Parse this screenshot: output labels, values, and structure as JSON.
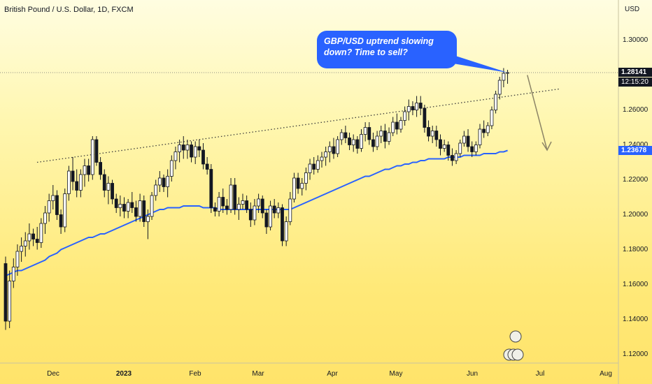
{
  "symbol_title": "British Pound / U.S. Dollar, 1D, FXCM",
  "currency_label": "USD",
  "price_badge": "1.28141",
  "price_badge_time": "12:15:20",
  "ma_badge": "1.23678",
  "callout_text": "GBP/USD uptrend slowing down? Time to sell?",
  "chart_data": {
    "type": "line",
    "title": "British Pound / U.S. Dollar, 1D, FXCM",
    "ylabel": "USD",
    "ylim": [
      1.115,
      1.323
    ],
    "y_ticks": [
      "1.30000",
      "1.28000",
      "1.26000",
      "1.24000",
      "1.22000",
      "1.20000",
      "1.18000",
      "1.16000",
      "1.14000",
      "1.12000"
    ],
    "x_ticks": [
      {
        "label": "Dec"
      },
      {
        "label": "2023",
        "bold": true
      },
      {
        "label": "Feb"
      },
      {
        "label": "Mar"
      },
      {
        "label": "Apr"
      },
      {
        "label": "May"
      },
      {
        "label": "Jun"
      },
      {
        "label": "Jul"
      },
      {
        "label": "Aug"
      }
    ],
    "series": [
      {
        "kind": "candlestick",
        "up_color": "#ffffff",
        "down_color": "#131722",
        "ohlc": [
          [
            1.172,
            1.176,
            1.134,
            1.139
          ],
          [
            1.139,
            1.168,
            1.135,
            1.162
          ],
          [
            1.162,
            1.175,
            1.158,
            1.17
          ],
          [
            1.17,
            1.183,
            1.165,
            1.179
          ],
          [
            1.179,
            1.187,
            1.173,
            1.182
          ],
          [
            1.182,
            1.19,
            1.176,
            1.185
          ],
          [
            1.185,
            1.195,
            1.18,
            1.189
          ],
          [
            1.189,
            1.192,
            1.182,
            1.186
          ],
          [
            1.186,
            1.193,
            1.18,
            1.184
          ],
          [
            1.184,
            1.198,
            1.181,
            1.195
          ],
          [
            1.195,
            1.205,
            1.189,
            1.201
          ],
          [
            1.201,
            1.212,
            1.196,
            1.208
          ],
          [
            1.208,
            1.217,
            1.203,
            1.211
          ],
          [
            1.211,
            1.214,
            1.197,
            1.2
          ],
          [
            1.2,
            1.203,
            1.189,
            1.193
          ],
          [
            1.193,
            1.215,
            1.19,
            1.212
          ],
          [
            1.212,
            1.228,
            1.208,
            1.225
          ],
          [
            1.225,
            1.233,
            1.214,
            1.219
          ],
          [
            1.219,
            1.226,
            1.21,
            1.214
          ],
          [
            1.214,
            1.226,
            1.21,
            1.223
          ],
          [
            1.223,
            1.232,
            1.216,
            1.228
          ],
          [
            1.228,
            1.232,
            1.219,
            1.223
          ],
          [
            1.223,
            1.245,
            1.22,
            1.243
          ],
          [
            1.243,
            1.245,
            1.228,
            1.23
          ],
          [
            1.23,
            1.233,
            1.22,
            1.223
          ],
          [
            1.223,
            1.226,
            1.21,
            1.214
          ],
          [
            1.214,
            1.222,
            1.206,
            1.218
          ],
          [
            1.218,
            1.22,
            1.206,
            1.209
          ],
          [
            1.209,
            1.212,
            1.201,
            1.204
          ],
          [
            1.204,
            1.211,
            1.199,
            1.206
          ],
          [
            1.206,
            1.21,
            1.198,
            1.202
          ],
          [
            1.202,
            1.209,
            1.198,
            1.207
          ],
          [
            1.207,
            1.213,
            1.201,
            1.204
          ],
          [
            1.204,
            1.208,
            1.196,
            1.199
          ],
          [
            1.199,
            1.212,
            1.196,
            1.208
          ],
          [
            1.208,
            1.211,
            1.193,
            1.196
          ],
          [
            1.196,
            1.203,
            1.186,
            1.199
          ],
          [
            1.199,
            1.213,
            1.197,
            1.211
          ],
          [
            1.211,
            1.22,
            1.208,
            1.217
          ],
          [
            1.217,
            1.225,
            1.213,
            1.221
          ],
          [
            1.221,
            1.223,
            1.213,
            1.216
          ],
          [
            1.216,
            1.226,
            1.21,
            1.222
          ],
          [
            1.222,
            1.234,
            1.219,
            1.231
          ],
          [
            1.231,
            1.239,
            1.226,
            1.236
          ],
          [
            1.236,
            1.243,
            1.23,
            1.24
          ],
          [
            1.24,
            1.245,
            1.232,
            1.237
          ],
          [
            1.237,
            1.243,
            1.232,
            1.24
          ],
          [
            1.24,
            1.242,
            1.23,
            1.233
          ],
          [
            1.233,
            1.242,
            1.229,
            1.239
          ],
          [
            1.239,
            1.243,
            1.233,
            1.237
          ],
          [
            1.237,
            1.241,
            1.226,
            1.229
          ],
          [
            1.229,
            1.233,
            1.223,
            1.226
          ],
          [
            1.226,
            1.229,
            1.201,
            1.204
          ],
          [
            1.204,
            1.207,
            1.199,
            1.202
          ],
          [
            1.202,
            1.213,
            1.199,
            1.21
          ],
          [
            1.21,
            1.215,
            1.201,
            1.205
          ],
          [
            1.205,
            1.209,
            1.2,
            1.203
          ],
          [
            1.203,
            1.221,
            1.201,
            1.217
          ],
          [
            1.217,
            1.221,
            1.2,
            1.203
          ],
          [
            1.203,
            1.21,
            1.197,
            1.206
          ],
          [
            1.206,
            1.212,
            1.203,
            1.208
          ],
          [
            1.208,
            1.211,
            1.201,
            1.203
          ],
          [
            1.203,
            1.207,
            1.193,
            1.197
          ],
          [
            1.197,
            1.209,
            1.194,
            1.205
          ],
          [
            1.205,
            1.212,
            1.201,
            1.209
          ],
          [
            1.209,
            1.211,
            1.198,
            1.201
          ],
          [
            1.201,
            1.203,
            1.189,
            1.193
          ],
          [
            1.193,
            1.208,
            1.191,
            1.205
          ],
          [
            1.205,
            1.209,
            1.198,
            1.201
          ],
          [
            1.201,
            1.207,
            1.198,
            1.204
          ],
          [
            1.204,
            1.206,
            1.182,
            1.185
          ],
          [
            1.185,
            1.199,
            1.182,
            1.196
          ],
          [
            1.196,
            1.213,
            1.194,
            1.209
          ],
          [
            1.209,
            1.224,
            1.207,
            1.221
          ],
          [
            1.221,
            1.224,
            1.212,
            1.215
          ],
          [
            1.215,
            1.221,
            1.211,
            1.218
          ],
          [
            1.218,
            1.227,
            1.214,
            1.224
          ],
          [
            1.224,
            1.232,
            1.22,
            1.229
          ],
          [
            1.229,
            1.233,
            1.223,
            1.226
          ],
          [
            1.226,
            1.234,
            1.224,
            1.231
          ],
          [
            1.231,
            1.236,
            1.227,
            1.233
          ],
          [
            1.233,
            1.239,
            1.228,
            1.236
          ],
          [
            1.236,
            1.242,
            1.23,
            1.239
          ],
          [
            1.239,
            1.244,
            1.232,
            1.235
          ],
          [
            1.235,
            1.245,
            1.233,
            1.243
          ],
          [
            1.243,
            1.249,
            1.24,
            1.247
          ],
          [
            1.247,
            1.251,
            1.241,
            1.244
          ],
          [
            1.244,
            1.247,
            1.237,
            1.24
          ],
          [
            1.24,
            1.246,
            1.236,
            1.243
          ],
          [
            1.243,
            1.245,
            1.235,
            1.238
          ],
          [
            1.238,
            1.249,
            1.236,
            1.246
          ],
          [
            1.246,
            1.253,
            1.242,
            1.25
          ],
          [
            1.25,
            1.253,
            1.24,
            1.243
          ],
          [
            1.243,
            1.247,
            1.236,
            1.239
          ],
          [
            1.239,
            1.248,
            1.237,
            1.245
          ],
          [
            1.245,
            1.251,
            1.241,
            1.248
          ],
          [
            1.248,
            1.252,
            1.238,
            1.242
          ],
          [
            1.242,
            1.25,
            1.24,
            1.247
          ],
          [
            1.247,
            1.256,
            1.245,
            1.253
          ],
          [
            1.253,
            1.258,
            1.246,
            1.249
          ],
          [
            1.249,
            1.256,
            1.247,
            1.254
          ],
          [
            1.254,
            1.262,
            1.251,
            1.259
          ],
          [
            1.259,
            1.266,
            1.254,
            1.262
          ],
          [
            1.262,
            1.265,
            1.257,
            1.26
          ],
          [
            1.26,
            1.268,
            1.256,
            1.264
          ],
          [
            1.264,
            1.268,
            1.257,
            1.261
          ],
          [
            1.261,
            1.263,
            1.247,
            1.25
          ],
          [
            1.25,
            1.254,
            1.242,
            1.245
          ],
          [
            1.245,
            1.251,
            1.241,
            1.248
          ],
          [
            1.248,
            1.251,
            1.239,
            1.243
          ],
          [
            1.243,
            1.246,
            1.234,
            1.238
          ],
          [
            1.238,
            1.243,
            1.236,
            1.24
          ],
          [
            1.24,
            1.242,
            1.231,
            1.234
          ],
          [
            1.234,
            1.238,
            1.228,
            1.231
          ],
          [
            1.231,
            1.237,
            1.229,
            1.235
          ],
          [
            1.235,
            1.243,
            1.233,
            1.241
          ],
          [
            1.241,
            1.248,
            1.239,
            1.245
          ],
          [
            1.245,
            1.249,
            1.236,
            1.239
          ],
          [
            1.239,
            1.242,
            1.233,
            1.236
          ],
          [
            1.236,
            1.242,
            1.234,
            1.24
          ],
          [
            1.24,
            1.252,
            1.238,
            1.249
          ],
          [
            1.249,
            1.254,
            1.244,
            1.247
          ],
          [
            1.247,
            1.253,
            1.245,
            1.251
          ],
          [
            1.251,
            1.262,
            1.249,
            1.26
          ],
          [
            1.26,
            1.271,
            1.258,
            1.269
          ],
          [
            1.269,
            1.279,
            1.266,
            1.277
          ],
          [
            1.277,
            1.284,
            1.273,
            1.281
          ],
          [
            1.281,
            1.283,
            1.275,
            1.2814
          ]
        ]
      },
      {
        "kind": "moving-average",
        "color": "#2962ff",
        "values": [
          1.165,
          1.166,
          1.167,
          1.168,
          1.168,
          1.169,
          1.17,
          1.171,
          1.172,
          1.173,
          1.174,
          1.176,
          1.177,
          1.178,
          1.18,
          1.181,
          1.182,
          1.183,
          1.184,
          1.185,
          1.186,
          1.187,
          1.187,
          1.188,
          1.189,
          1.189,
          1.19,
          1.191,
          1.192,
          1.193,
          1.194,
          1.195,
          1.196,
          1.197,
          1.198,
          1.199,
          1.2,
          1.201,
          1.202,
          1.203,
          1.203,
          1.204,
          1.204,
          1.204,
          1.204,
          1.205,
          1.205,
          1.205,
          1.205,
          1.205,
          1.204,
          1.204,
          1.204,
          1.204,
          1.203,
          1.203,
          1.203,
          1.203,
          1.203,
          1.203,
          1.203,
          1.203,
          1.203,
          1.203,
          1.203,
          1.203,
          1.203,
          1.203,
          1.203,
          1.203,
          1.203,
          1.203,
          1.203,
          1.204,
          1.205,
          1.206,
          1.207,
          1.208,
          1.209,
          1.21,
          1.211,
          1.212,
          1.213,
          1.214,
          1.215,
          1.216,
          1.217,
          1.218,
          1.219,
          1.22,
          1.221,
          1.222,
          1.222,
          1.223,
          1.224,
          1.225,
          1.226,
          1.226,
          1.227,
          1.228,
          1.228,
          1.229,
          1.229,
          1.23,
          1.23,
          1.231,
          1.231,
          1.232,
          1.232,
          1.232,
          1.232,
          1.232,
          1.233,
          1.233,
          1.233,
          1.233,
          1.234,
          1.234,
          1.234,
          1.234,
          1.234,
          1.235,
          1.235,
          1.235,
          1.235,
          1.236,
          1.236,
          1.2368
        ]
      }
    ],
    "annotations": [
      {
        "type": "dotted-trendline",
        "from": [
          0,
          1.23
        ],
        "to": [
          140,
          1.272
        ]
      },
      {
        "type": "horizontal-price-line",
        "value": 1.28141
      },
      {
        "type": "arrow-down",
        "from": [
          132,
          1.28
        ],
        "to": [
          137,
          1.237
        ]
      }
    ]
  }
}
